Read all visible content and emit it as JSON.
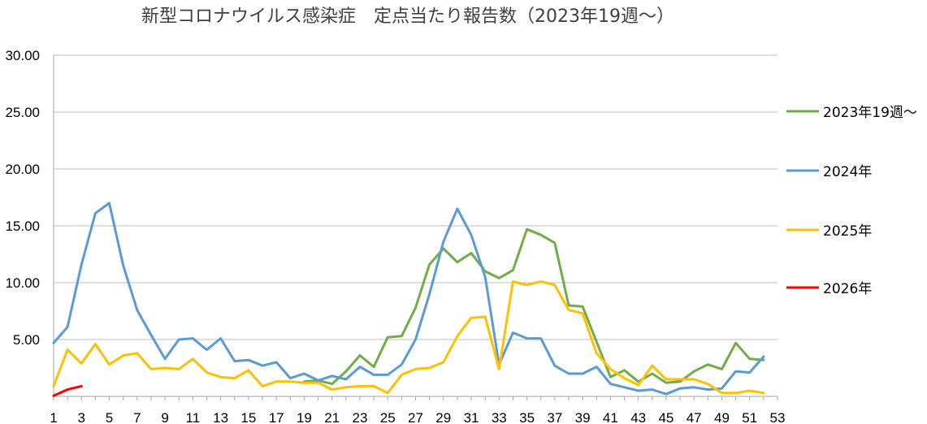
{
  "chart_data": {
    "type": "line",
    "title": "新型コロナウイルス感染症　定点当たり報告数（2023年19週〜）",
    "xlabel": "",
    "ylabel": "",
    "ylim": [
      0,
      30
    ],
    "xlim": [
      1,
      53
    ],
    "y_ticks": [
      "30.00",
      "25.00",
      "20.00",
      "15.00",
      "10.00",
      "5.00"
    ],
    "x_ticks": [
      "1",
      "3",
      "5",
      "7",
      "9",
      "11",
      "13",
      "15",
      "17",
      "19",
      "21",
      "23",
      "25",
      "27",
      "29",
      "31",
      "33",
      "35",
      "37",
      "39",
      "41",
      "43",
      "45",
      "47",
      "49",
      "51",
      "53"
    ],
    "grid": "horizontal",
    "legend_position": "right",
    "series": [
      {
        "name": "2023年19週〜",
        "color": "#70AD47",
        "x": [
          19,
          20,
          21,
          22,
          23,
          24,
          25,
          26,
          27,
          28,
          29,
          30,
          31,
          32,
          33,
          34,
          35,
          36,
          37,
          38,
          39,
          40,
          41,
          42,
          43,
          44,
          45,
          46,
          47,
          48,
          49,
          50,
          51,
          52
        ],
        "values": [
          1.3,
          1.4,
          1.1,
          2.2,
          3.6,
          2.6,
          5.2,
          5.3,
          7.8,
          11.6,
          13.0,
          11.8,
          12.6,
          11.0,
          10.4,
          11.1,
          14.7,
          14.2,
          13.5,
          8.0,
          7.9,
          4.8,
          1.7,
          2.3,
          1.3,
          2.0,
          1.2,
          1.3,
          2.2,
          2.8,
          2.4,
          4.7,
          3.3,
          3.2
        ]
      },
      {
        "name": "2024年",
        "color": "#5B9BD5",
        "x": [
          1,
          2,
          3,
          4,
          5,
          6,
          7,
          8,
          9,
          10,
          11,
          12,
          13,
          14,
          15,
          16,
          17,
          18,
          19,
          20,
          21,
          22,
          23,
          24,
          25,
          26,
          27,
          28,
          29,
          30,
          31,
          32,
          33,
          34,
          35,
          36,
          37,
          38,
          39,
          40,
          41,
          42,
          43,
          44,
          45,
          46,
          47,
          48,
          49,
          50,
          51,
          52
        ],
        "values": [
          4.7,
          6.1,
          11.6,
          16.1,
          17.0,
          11.5,
          7.6,
          5.4,
          3.3,
          5.0,
          5.1,
          4.1,
          5.1,
          3.1,
          3.2,
          2.7,
          3.0,
          1.6,
          2.0,
          1.4,
          1.8,
          1.5,
          2.6,
          1.9,
          1.9,
          2.8,
          5.0,
          9.0,
          13.6,
          16.5,
          14.2,
          10.5,
          2.8,
          5.6,
          5.1,
          5.1,
          2.7,
          2.0,
          2.0,
          2.6,
          1.1,
          0.8,
          0.5,
          0.6,
          0.2,
          0.7,
          0.8,
          0.6,
          0.7,
          2.2,
          2.1,
          3.5
        ]
      },
      {
        "name": "2025年",
        "color": "#FFC000",
        "x": [
          1,
          2,
          3,
          4,
          5,
          6,
          7,
          8,
          9,
          10,
          11,
          12,
          13,
          14,
          15,
          16,
          17,
          18,
          19,
          20,
          21,
          22,
          23,
          24,
          25,
          26,
          27,
          28,
          29,
          30,
          31,
          32,
          33,
          34,
          35,
          36,
          37,
          38,
          39,
          40,
          41,
          42,
          43,
          44,
          45,
          46,
          47,
          48,
          49,
          50,
          51,
          52
        ],
        "values": [
          0.9,
          4.1,
          2.9,
          4.6,
          2.8,
          3.6,
          3.8,
          2.4,
          2.5,
          2.4,
          3.3,
          2.1,
          1.7,
          1.6,
          2.3,
          0.9,
          1.3,
          1.3,
          1.2,
          1.2,
          0.6,
          0.8,
          0.9,
          0.9,
          0.3,
          1.9,
          2.4,
          2.5,
          3.0,
          5.3,
          6.9,
          7.0,
          2.4,
          10.1,
          9.8,
          10.1,
          9.8,
          7.6,
          7.3,
          3.8,
          2.4,
          1.6,
          1.0,
          2.7,
          1.5,
          1.5,
          1.5,
          1.1,
          0.3,
          0.3,
          0.5,
          0.3
        ]
      },
      {
        "name": "2026年",
        "color": "#FF0000",
        "x": [
          1,
          2,
          3
        ],
        "values": [
          0.05,
          0.6,
          0.9
        ]
      }
    ]
  }
}
